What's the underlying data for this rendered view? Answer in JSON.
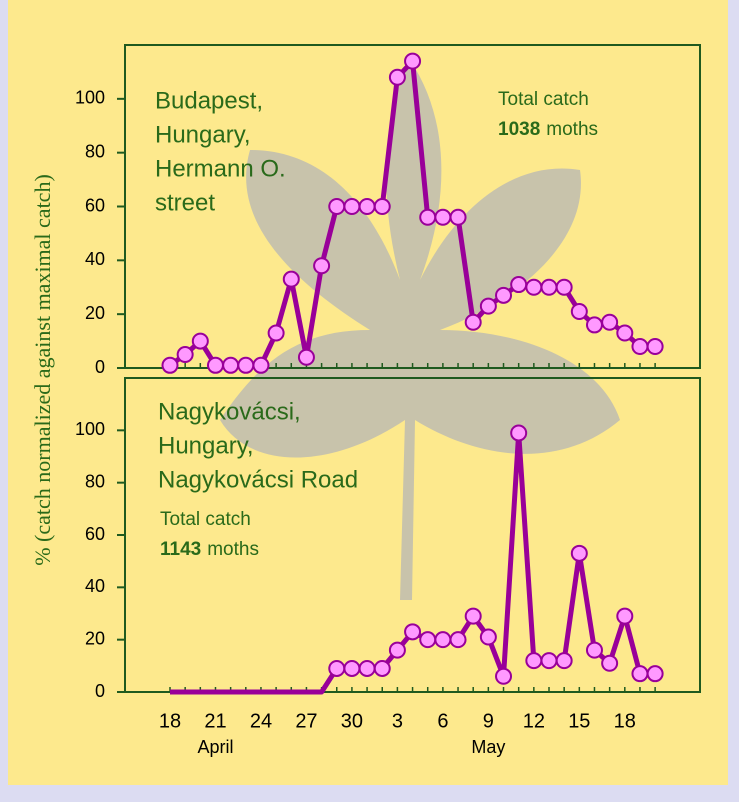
{
  "chart_data": [
    {
      "type": "line",
      "y_label": "% (catch normalized against maximal catch)",
      "annotations": [
        "Budapest,",
        "Hungary,",
        "Hermann O.",
        "street"
      ],
      "total_catch_label": "Total catch",
      "total_catch": 1038,
      "total_catch_unit": "moths",
      "categories": [
        "18",
        null,
        null,
        "21",
        null,
        null,
        "24",
        null,
        null,
        "27",
        null,
        null,
        "30",
        null,
        null,
        "3",
        null,
        null,
        "6",
        null,
        null,
        "9",
        null,
        null,
        "12",
        null,
        null,
        "15",
        null,
        null,
        "18",
        null,
        null
      ],
      "series": [
        {
          "color": "#990099",
          "marker_color": "#ff99ff",
          "values": [
            1,
            5,
            10,
            1,
            1,
            1,
            1,
            13,
            33,
            4,
            38,
            60,
            60,
            60,
            60,
            108,
            114,
            56,
            56,
            56,
            17,
            23,
            27,
            31,
            30,
            30,
            30,
            21,
            16,
            17,
            13,
            8,
            8
          ]
        }
      ],
      "ylim": [
        0,
        120
      ],
      "yticks": [
        0,
        20,
        40,
        60,
        80,
        100
      ]
    },
    {
      "type": "line",
      "annotations": [
        "Nagykovácsi,",
        "Hungary,",
        "Nagykovácsi Road"
      ],
      "total_catch_label": "Total catch",
      "total_catch": 1143,
      "total_catch_unit": "moths",
      "x_group_labels": [
        "April",
        "May"
      ],
      "categories": [
        "18",
        null,
        null,
        "21",
        null,
        null,
        "24",
        null,
        null,
        "27",
        null,
        null,
        "30",
        null,
        null,
        "3",
        null,
        null,
        "6",
        null,
        null,
        "9",
        null,
        null,
        "12",
        null,
        null,
        "15",
        null,
        null,
        "18",
        null,
        null
      ],
      "series": [
        {
          "color": "#990099",
          "marker_color": "#ff99ff",
          "values": [
            0,
            0,
            0,
            0,
            0,
            0,
            0,
            0,
            0,
            0,
            0,
            9,
            9,
            9,
            9,
            16,
            23,
            20,
            20,
            20,
            29,
            21,
            6,
            99,
            12,
            12,
            12,
            53,
            16,
            11,
            29,
            7,
            7
          ]
        }
      ],
      "ylim": [
        0,
        120
      ],
      "yticks": [
        0,
        20,
        40,
        60,
        80,
        100
      ]
    }
  ]
}
